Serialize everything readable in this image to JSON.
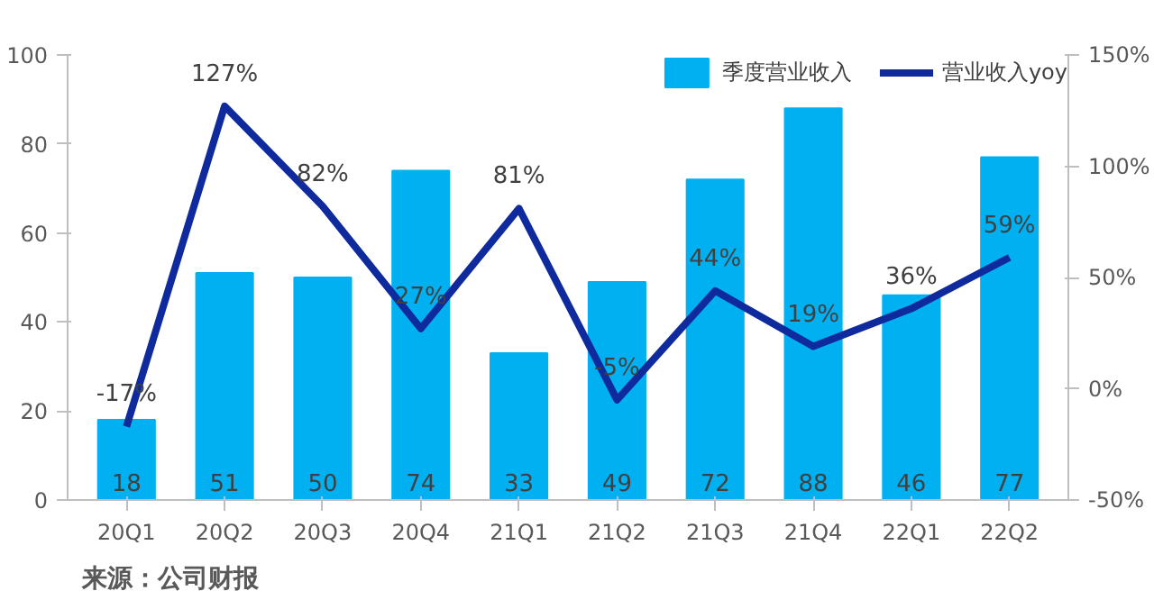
{
  "chart_data": {
    "type": "bar",
    "categories": [
      "20Q1",
      "20Q2",
      "20Q3",
      "20Q4",
      "21Q1",
      "21Q2",
      "21Q3",
      "21Q4",
      "22Q1",
      "22Q2"
    ],
    "series": [
      {
        "name": "季度营业收入",
        "color": "#00b0f0",
        "values": [
          18,
          51,
          50,
          74,
          33,
          49,
          72,
          88,
          46,
          77
        ]
      },
      {
        "name": "营业收入yoy",
        "type": "line",
        "axis": "y2",
        "color": "#0e2a9c",
        "values": [
          -17,
          127,
          82,
          27,
          81,
          -5,
          44,
          19,
          36,
          59
        ],
        "value_labels": [
          "-17%",
          "127%",
          "82%",
          "27%",
          "81%",
          "-5%",
          "44%",
          "19%",
          "36%",
          "59%"
        ]
      }
    ],
    "ylim": [
      0,
      100
    ],
    "yticks": [
      0,
      20,
      40,
      60,
      80,
      100
    ],
    "y2lim": [
      -50,
      150
    ],
    "y2ticks": [
      {
        "value": -50,
        "label": "-50%"
      },
      {
        "value": 0,
        "label": "0%"
      },
      {
        "value": 50,
        "label": "50%"
      },
      {
        "value": 100,
        "label": "100%"
      },
      {
        "value": 150,
        "label": "150%"
      }
    ],
    "data_labels": true,
    "legend": "top right",
    "grid": false,
    "marker": "none",
    "line_style": "solid",
    "annotations": [
      "来源：公司财报"
    ]
  }
}
